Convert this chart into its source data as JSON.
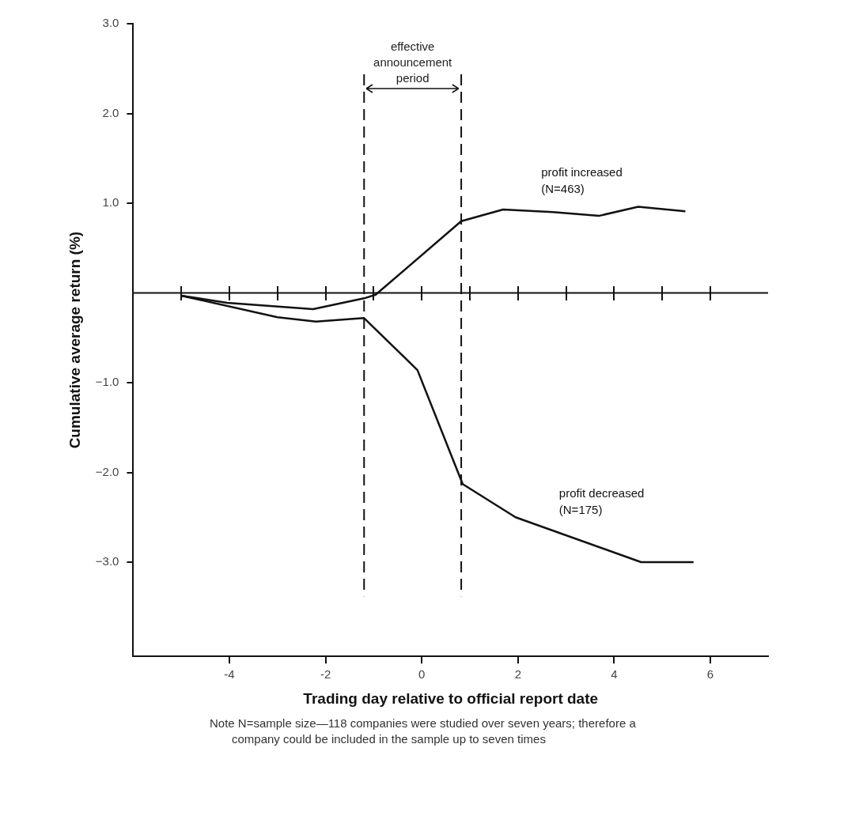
{
  "chart_data": {
    "type": "line",
    "xlabel": "Trading day relative to official report date",
    "ylabel": "Cumulative average return (%)",
    "xlim": [
      -6,
      7.2
    ],
    "xticks": [
      -4,
      -2,
      0,
      2,
      4,
      6
    ],
    "ylim": [
      -4.05,
      3.0
    ],
    "yticks": [
      {
        "value": -3,
        "label": "−3.0"
      },
      {
        "value": -2,
        "label": "−2.0"
      },
      {
        "value": -1,
        "label": "−1.0"
      },
      {
        "value": 1,
        "label": "1.0"
      },
      {
        "value": 2,
        "label": "2.0"
      },
      {
        "value": 3,
        "label": "3.0"
      }
    ],
    "series": [
      {
        "name": "profit increased (N=463)",
        "color": "#111111",
        "x": [
          -5.0,
          -4.05,
          -2.26,
          -1.2,
          -0.96,
          0.82,
          1.69,
          2.73,
          3.69,
          4.5,
          5.48
        ],
        "values": [
          -0.03,
          -0.11,
          -0.18,
          -0.06,
          -0.02,
          0.8,
          0.93,
          0.9,
          0.86,
          0.96,
          0.91
        ]
      },
      {
        "name": "profit decreased (N=175)",
        "color": "#111111",
        "x": [
          -5.0,
          -3.0,
          -2.2,
          -1.2,
          -0.09,
          0.85,
          1.95,
          4.56,
          5.65
        ],
        "values": [
          -0.03,
          -0.27,
          -0.32,
          -0.28,
          -0.86,
          -2.13,
          -2.5,
          -3.0,
          -3.0
        ]
      }
    ],
    "ref_lines": [
      {
        "axis": "y",
        "value": 0
      },
      {
        "axis": "x",
        "value": -1.2,
        "line_style": "dashed"
      },
      {
        "axis": "x",
        "value": 0.82,
        "line_style": "dashed"
      }
    ],
    "annotations": [
      "effective announcement period",
      "Note N=sample size—118 companies were studied over seven years; therefore a company could be included in the sample up to seven times"
    ],
    "grid": false,
    "legend": false,
    "marker": "none",
    "line_style": "solid"
  }
}
